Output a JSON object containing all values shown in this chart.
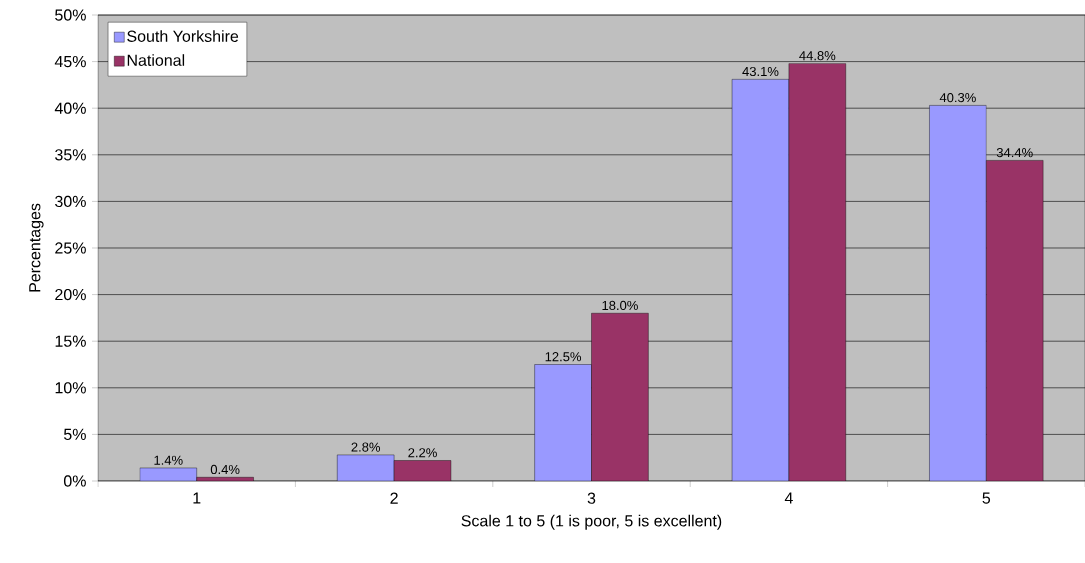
{
  "chart_data": {
    "type": "bar",
    "xlabel": "Scale 1 to 5 (1 is poor, 5 is excellent)",
    "ylabel": "Percentages",
    "categories": [
      "1",
      "2",
      "3",
      "4",
      "5"
    ],
    "series": [
      {
        "name": "South Yorkshire",
        "color": "#9999ff",
        "values": [
          1.4,
          2.8,
          12.5,
          43.1,
          40.3
        ],
        "value_labels": [
          "1.4%",
          "2.8%",
          "12.5%",
          "43.1%",
          "40.3%"
        ]
      },
      {
        "name": "National",
        "color": "#993366",
        "values": [
          0.4,
          2.2,
          18.0,
          44.8,
          34.4
        ],
        "value_labels": [
          "0.4%",
          "2.2%",
          "18.0%",
          "44.8%",
          "34.4%"
        ]
      }
    ],
    "ylim": [
      0,
      50
    ],
    "yticks": [
      {
        "value": 0,
        "label": "0%"
      },
      {
        "value": 5,
        "label": "5%"
      },
      {
        "value": 10,
        "label": "10%"
      },
      {
        "value": 15,
        "label": "15%"
      },
      {
        "value": 20,
        "label": "20%"
      },
      {
        "value": 25,
        "label": "25%"
      },
      {
        "value": 30,
        "label": "30%"
      },
      {
        "value": 35,
        "label": "35%"
      },
      {
        "value": 40,
        "label": "40%"
      },
      {
        "value": 45,
        "label": "45%"
      },
      {
        "value": 50,
        "label": "50%"
      }
    ],
    "grid": "y",
    "legend": "top left"
  }
}
